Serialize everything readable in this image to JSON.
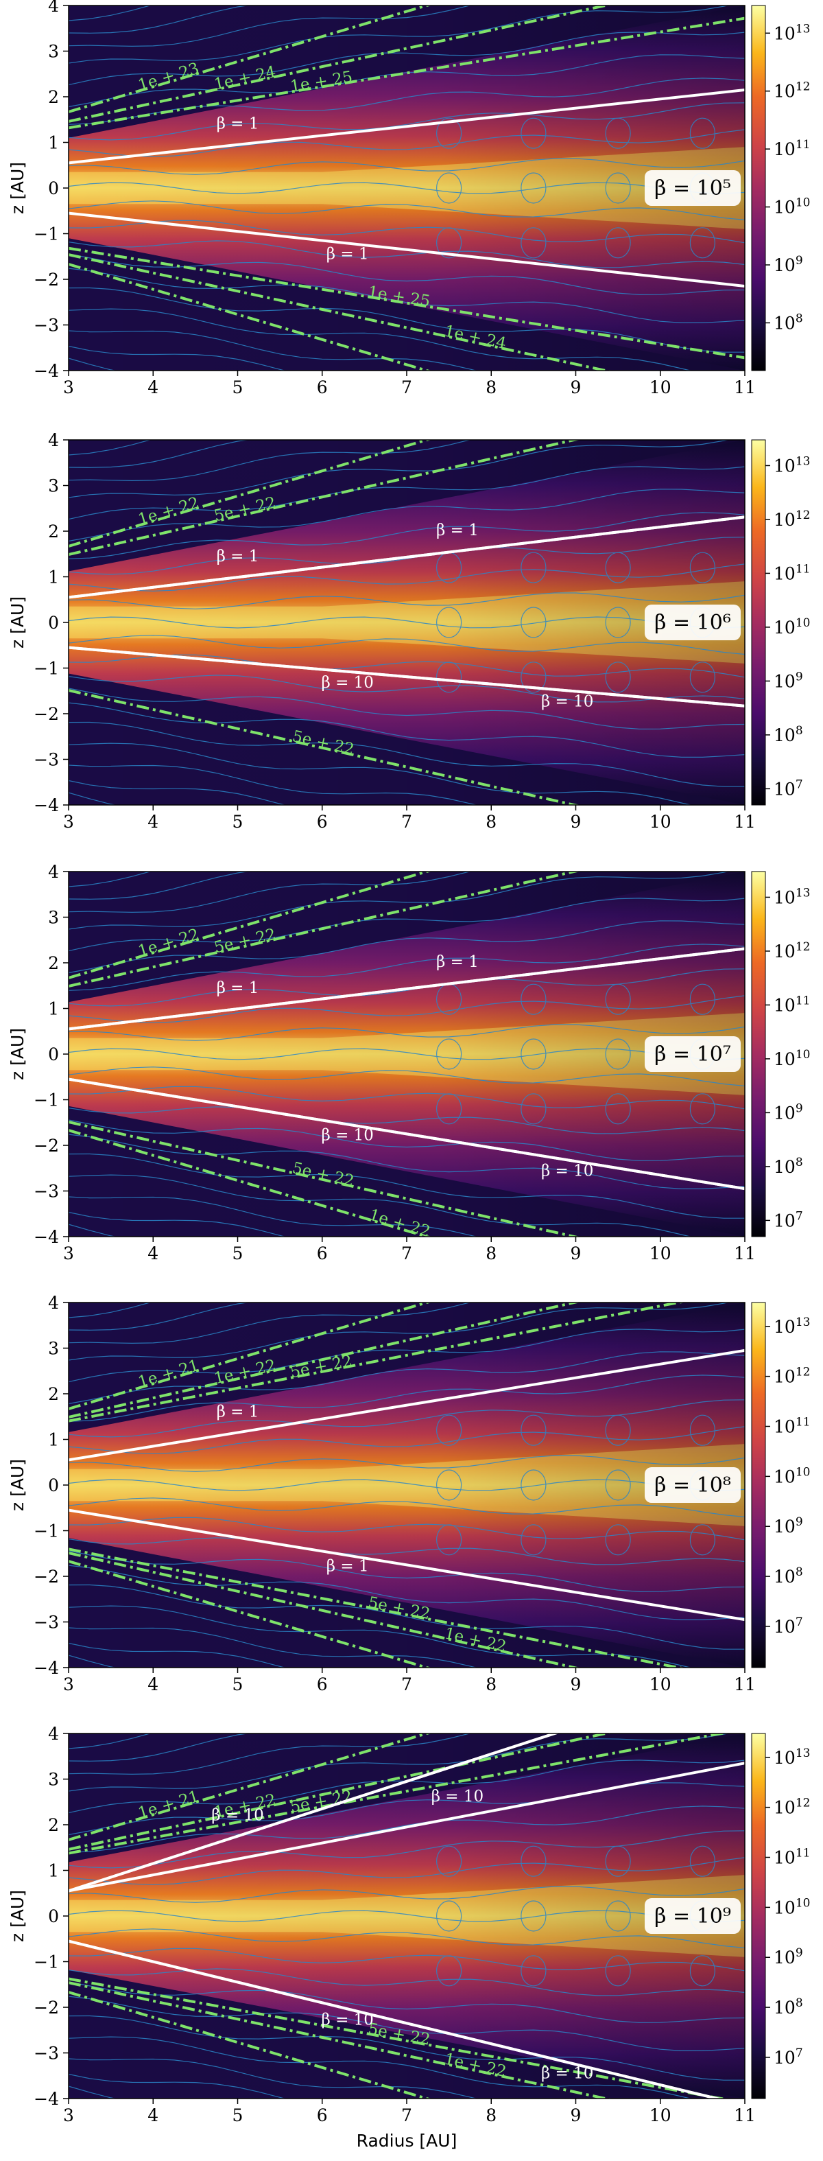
{
  "figure": {
    "xlabel": "Radius [AU]",
    "ylabel": "z [AU]"
  },
  "chart_data": [
    {
      "type": "heatmap",
      "panel_label": "β = 10⁵",
      "x_ticks": [
        "3",
        "4",
        "5",
        "6",
        "7",
        "8",
        "9",
        "10",
        "11"
      ],
      "y_ticks": [
        "−4",
        "−3",
        "−2",
        "−1",
        "0",
        "1",
        "2",
        "3",
        "4"
      ],
      "xlim": [
        3,
        11
      ],
      "ylim": [
        -4,
        4
      ],
      "colorbar": {
        "scale": "log",
        "range": [
          15000000.0,
          30000000000000.0
        ],
        "ticks": [
          {
            "base": "10",
            "exp": "8",
            "v": 100000000.0
          },
          {
            "base": "10",
            "exp": "9",
            "v": 1000000000.0
          },
          {
            "base": "10",
            "exp": "10",
            "v": 10000000000.0
          },
          {
            "base": "10",
            "exp": "11",
            "v": 100000000000.0
          },
          {
            "base": "10",
            "exp": "12",
            "v": 1000000000000.0
          },
          {
            "base": "10",
            "exp": "13",
            "v": 10000000000000.0
          }
        ]
      },
      "beta_contours": [
        {
          "label": "β = 1",
          "slope_top": 0.2,
          "slope_bot": -0.2
        },
        {
          "label": "β = 1",
          "slope_top": 0.2,
          "slope_bot": -0.2
        }
      ],
      "column_contours": [
        {
          "label": "1e + 23",
          "slope": 0.55
        },
        {
          "label": "1e + 24",
          "slope": 0.4
        },
        {
          "label": "1e + 25",
          "slope": 0.3
        },
        {
          "label": "1e + 25",
          "slope": -0.3
        },
        {
          "label": "1e + 24",
          "slope": -0.4
        },
        {
          "label": "1e + 23",
          "slope": -0.55
        }
      ]
    },
    {
      "type": "heatmap",
      "panel_label": "β = 10⁶",
      "x_ticks": [
        "3",
        "4",
        "5",
        "6",
        "7",
        "8",
        "9",
        "10",
        "11"
      ],
      "y_ticks": [
        "−4",
        "−3",
        "−2",
        "−1",
        "0",
        "1",
        "2",
        "3",
        "4"
      ],
      "xlim": [
        3,
        11
      ],
      "ylim": [
        -4,
        4
      ],
      "colorbar": {
        "scale": "log",
        "range": [
          5000000.0,
          30000000000000.0
        ],
        "ticks": [
          {
            "base": "10",
            "exp": "7",
            "v": 10000000.0
          },
          {
            "base": "10",
            "exp": "8",
            "v": 100000000.0
          },
          {
            "base": "10",
            "exp": "9",
            "v": 1000000000.0
          },
          {
            "base": "10",
            "exp": "10",
            "v": 10000000000.0
          },
          {
            "base": "10",
            "exp": "11",
            "v": 100000000000.0
          },
          {
            "base": "10",
            "exp": "12",
            "v": 1000000000000.0
          },
          {
            "base": "10",
            "exp": "13",
            "v": 10000000000000.0
          }
        ]
      },
      "beta_contours": [
        {
          "label": "β = 1",
          "slope_top": 0.22,
          "slope_bot": -0.22
        },
        {
          "label": "β = 10",
          "slope_top": 0.16,
          "slope_bot": -0.16
        },
        {
          "label": "β = 1",
          "slope_top": 0.22,
          "slope_bot": -0.22
        },
        {
          "label": "β = 10",
          "slope_top": 0.16,
          "slope_bot": -0.16
        }
      ],
      "column_contours": [
        {
          "label": "1e + 22",
          "slope": 0.55
        },
        {
          "label": "5e + 22",
          "slope": 0.42
        },
        {
          "label": "5e + 22",
          "slope": -0.42
        }
      ]
    },
    {
      "type": "heatmap",
      "panel_label": "β = 10⁷",
      "x_ticks": [
        "3",
        "4",
        "5",
        "6",
        "7",
        "8",
        "9",
        "10",
        "11"
      ],
      "y_ticks": [
        "−4",
        "−3",
        "−2",
        "−1",
        "0",
        "1",
        "2",
        "3",
        "4"
      ],
      "xlim": [
        3,
        11
      ],
      "ylim": [
        -4,
        4
      ],
      "colorbar": {
        "scale": "log",
        "range": [
          5000000.0,
          30000000000000.0
        ],
        "ticks": [
          {
            "base": "10",
            "exp": "7",
            "v": 10000000.0
          },
          {
            "base": "10",
            "exp": "8",
            "v": 100000000.0
          },
          {
            "base": "10",
            "exp": "9",
            "v": 1000000000.0
          },
          {
            "base": "10",
            "exp": "10",
            "v": 10000000000.0
          },
          {
            "base": "10",
            "exp": "11",
            "v": 100000000000.0
          },
          {
            "base": "10",
            "exp": "12",
            "v": 1000000000000.0
          },
          {
            "base": "10",
            "exp": "13",
            "v": 10000000000000.0
          }
        ]
      },
      "beta_contours": [
        {
          "label": "β = 1",
          "slope_top": 0.22,
          "slope_bot": -0.22
        },
        {
          "label": "β = 10",
          "slope_top": 0.3,
          "slope_bot": -0.3
        },
        {
          "label": "β = 1",
          "slope_top": 0.22,
          "slope_bot": -0.22
        },
        {
          "label": "β = 10",
          "slope_top": 0.3,
          "slope_bot": -0.3
        }
      ],
      "column_contours": [
        {
          "label": "1e + 22",
          "slope": 0.55
        },
        {
          "label": "5e + 22",
          "slope": 0.42
        },
        {
          "label": "5e + 22",
          "slope": -0.42
        },
        {
          "label": "1e + 22",
          "slope": -0.55
        }
      ]
    },
    {
      "type": "heatmap",
      "panel_label": "β = 10⁸",
      "x_ticks": [
        "3",
        "4",
        "5",
        "6",
        "7",
        "8",
        "9",
        "10",
        "11"
      ],
      "y_ticks": [
        "−4",
        "−3",
        "−2",
        "−1",
        "0",
        "1",
        "2",
        "3",
        "4"
      ],
      "xlim": [
        3,
        11
      ],
      "ylim": [
        -4,
        4
      ],
      "colorbar": {
        "scale": "log",
        "range": [
          1500000.0,
          30000000000000.0
        ],
        "ticks": [
          {
            "base": "10",
            "exp": "7",
            "v": 10000000.0
          },
          {
            "base": "10",
            "exp": "8",
            "v": 100000000.0
          },
          {
            "base": "10",
            "exp": "9",
            "v": 1000000000.0
          },
          {
            "base": "10",
            "exp": "10",
            "v": 10000000000.0
          },
          {
            "base": "10",
            "exp": "11",
            "v": 100000000000.0
          },
          {
            "base": "10",
            "exp": "12",
            "v": 1000000000000.0
          },
          {
            "base": "10",
            "exp": "13",
            "v": 10000000000000.0
          }
        ]
      },
      "beta_contours": [
        {
          "label": "β = 1",
          "slope_top": 0.3,
          "slope_bot": -0.3
        },
        {
          "label": "β = 1",
          "slope_top": 0.3,
          "slope_bot": -0.3
        }
      ],
      "column_contours": [
        {
          "label": "1e + 21",
          "slope": 0.55
        },
        {
          "label": "1e + 22",
          "slope": 0.42
        },
        {
          "label": "5e + 22",
          "slope": 0.36
        },
        {
          "label": "5e + 22",
          "slope": -0.36
        },
        {
          "label": "1e + 22",
          "slope": -0.42
        },
        {
          "label": "1e + 21",
          "slope": -0.55
        }
      ]
    },
    {
      "type": "heatmap",
      "panel_label": "β = 10⁹",
      "x_ticks": [
        "3",
        "4",
        "5",
        "6",
        "7",
        "8",
        "9",
        "10",
        "11"
      ],
      "y_ticks": [
        "−4",
        "−3",
        "−2",
        "−1",
        "0",
        "1",
        "2",
        "3",
        "4"
      ],
      "xlim": [
        3,
        11
      ],
      "ylim": [
        -4,
        4
      ],
      "colorbar": {
        "scale": "log",
        "range": [
          1500000.0,
          30000000000000.0
        ],
        "ticks": [
          {
            "base": "10",
            "exp": "7",
            "v": 10000000.0
          },
          {
            "base": "10",
            "exp": "8",
            "v": 100000000.0
          },
          {
            "base": "10",
            "exp": "9",
            "v": 1000000000.0
          },
          {
            "base": "10",
            "exp": "10",
            "v": 10000000000.0
          },
          {
            "base": "10",
            "exp": "11",
            "v": 100000000000.0
          },
          {
            "base": "10",
            "exp": "12",
            "v": 1000000000000.0
          },
          {
            "base": "10",
            "exp": "13",
            "v": 10000000000000.0
          }
        ]
      },
      "beta_contours": [
        {
          "label": "β = 10",
          "slope_top": 0.6,
          "slope_bot": -0.6
        },
        {
          "label": "β = 10",
          "slope_top": 0.45,
          "slope_bot": -0.45
        },
        {
          "label": "β = 10",
          "slope_top": 0.35,
          "slope_bot": -0.35
        },
        {
          "label": "β = 10",
          "slope_top": 0.45,
          "slope_bot": -0.45
        },
        {
          "label": "β = 10",
          "slope_top": 0.6,
          "slope_bot": -0.6
        }
      ],
      "column_contours": [
        {
          "label": "1e + 21",
          "slope": 0.55
        },
        {
          "label": "1e + 22",
          "slope": 0.4
        },
        {
          "label": "5e + 22",
          "slope": 0.34
        },
        {
          "label": "5e + 22",
          "slope": -0.34
        },
        {
          "label": "1e + 22",
          "slope": -0.4
        },
        {
          "label": "1e + 21",
          "slope": -0.55
        }
      ]
    }
  ],
  "colors": {
    "beta_contour": "#ffffff",
    "column_contour": "#7fe36a",
    "streamline": "#2a86c8",
    "colormap": "inferno"
  }
}
